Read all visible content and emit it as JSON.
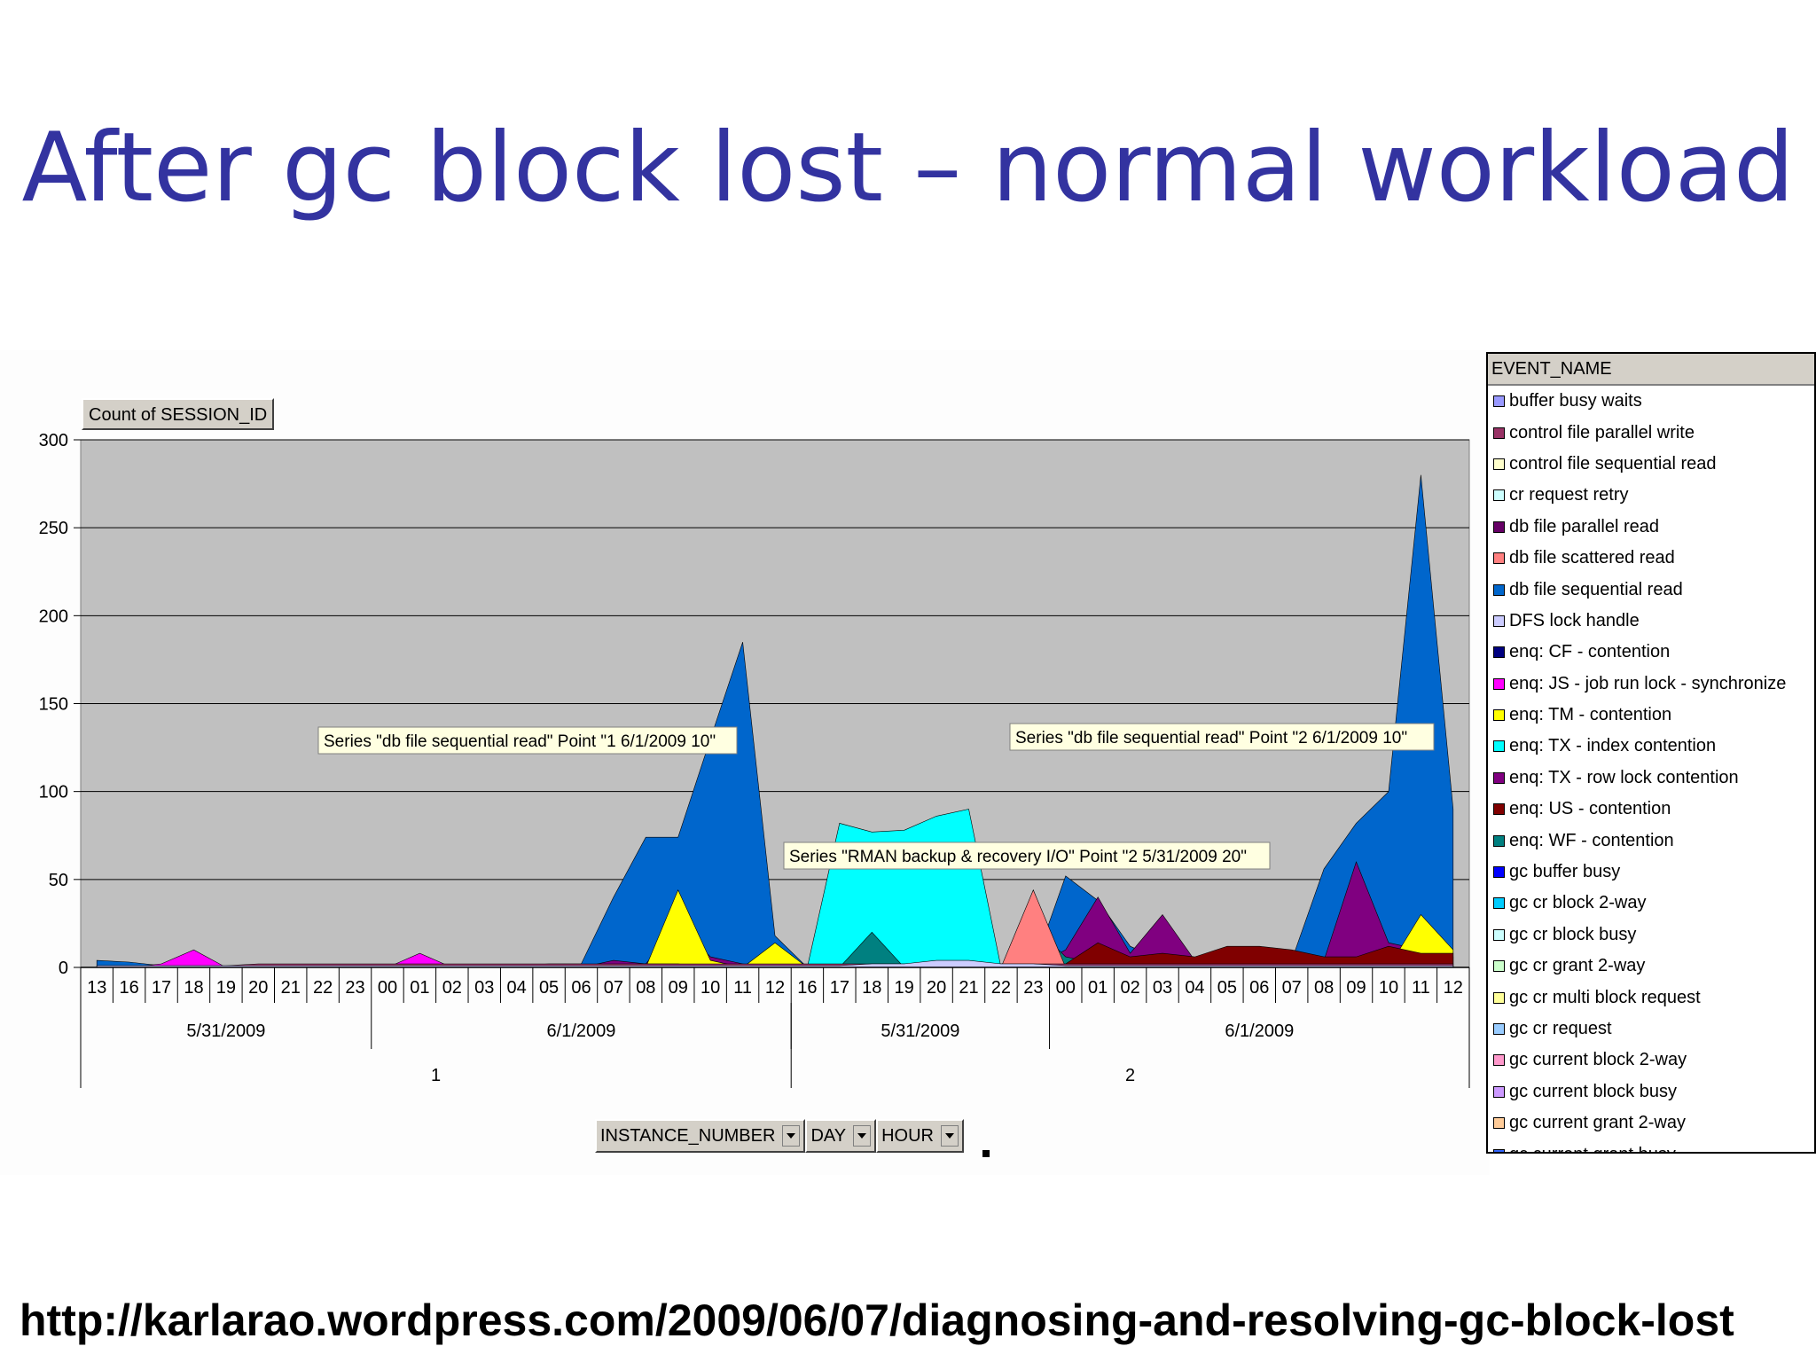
{
  "slide": {
    "title": "After gc block lost – normal workload",
    "url": "http://karlarao.wordpress.com/2009/06/07/diagnosing-and-resolving-gc-block-lost"
  },
  "pivot": {
    "data_field": "Count of SESSION_ID",
    "row_fields": [
      "INSTANCE_NUMBER",
      "DAY",
      "HOUR"
    ],
    "legend_title": "EVENT_NAME"
  },
  "colors": {
    "plot_bg": "#c0c0c0",
    "title": "#3333a0"
  },
  "chart_data": {
    "type": "area",
    "ylim": [
      0,
      300
    ],
    "yticks": [
      0,
      50,
      100,
      150,
      200,
      250,
      300
    ],
    "grid": true,
    "legend_placement": "right",
    "x_hours": [
      "13",
      "16",
      "17",
      "18",
      "19",
      "20",
      "21",
      "22",
      "23",
      "00",
      "01",
      "02",
      "03",
      "04",
      "05",
      "06",
      "07",
      "08",
      "09",
      "10",
      "11",
      "12",
      "16",
      "17",
      "18",
      "19",
      "20",
      "21",
      "22",
      "23",
      "00",
      "01",
      "02",
      "03",
      "04",
      "05",
      "06",
      "07",
      "08",
      "09",
      "10",
      "11",
      "12"
    ],
    "day_groups": [
      {
        "label": "5/31/2009",
        "count": 9
      },
      {
        "label": "6/1/2009",
        "count": 13
      },
      {
        "label": "5/31/2009",
        "count": 8
      },
      {
        "label": "6/1/2009",
        "count": 13
      }
    ],
    "instance_groups": [
      {
        "label": "1",
        "count": 22
      },
      {
        "label": "2",
        "count": 21
      }
    ],
    "series": [
      {
        "name": "buffer busy waits",
        "color": "#9999ff"
      },
      {
        "name": "control file parallel write",
        "color": "#993366"
      },
      {
        "name": "control file sequential read",
        "color": "#ffffcc"
      },
      {
        "name": "cr request retry",
        "color": "#ccffff"
      },
      {
        "name": "db file parallel read",
        "color": "#660066"
      },
      {
        "name": "db file scattered read",
        "color": "#ff8080"
      },
      {
        "name": "db file sequential read",
        "color": "#0066cc"
      },
      {
        "name": "DFS lock handle",
        "color": "#ccccff"
      },
      {
        "name": "enq: CF - contention",
        "color": "#000080"
      },
      {
        "name": "enq: JS - job run lock - synchronize",
        "color": "#ff00ff"
      },
      {
        "name": "enq: TM - contention",
        "color": "#ffff00"
      },
      {
        "name": "enq: TX - index contention",
        "color": "#00ffff"
      },
      {
        "name": "enq: TX - row lock contention",
        "color": "#800080"
      },
      {
        "name": "enq: US - contention",
        "color": "#800000"
      },
      {
        "name": "enq: WF - contention",
        "color": "#008080"
      },
      {
        "name": "gc buffer busy",
        "color": "#0000ff"
      },
      {
        "name": "gc cr block 2-way",
        "color": "#00ccff"
      },
      {
        "name": "gc cr block busy",
        "color": "#ccffff"
      },
      {
        "name": "gc cr grant 2-way",
        "color": "#ccffcc"
      },
      {
        "name": "gc cr multi block request",
        "color": "#ffff99"
      },
      {
        "name": "gc cr request",
        "color": "#99ccff"
      },
      {
        "name": "gc current block 2-way",
        "color": "#ff99cc"
      },
      {
        "name": "gc current block busy",
        "color": "#cc99ff"
      },
      {
        "name": "gc current grant 2-way",
        "color": "#ffcc99"
      },
      {
        "name": "gc current grant busy",
        "color": "#3366ff"
      }
    ],
    "areas": [
      {
        "name": "db file sequential read",
        "color": "#0066cc",
        "values": [
          4,
          3,
          1,
          0,
          0,
          1,
          1,
          1,
          1,
          1,
          1,
          1,
          1,
          1,
          2,
          2,
          40,
          74,
          74,
          130,
          185,
          18,
          0,
          0,
          0,
          0,
          0,
          0,
          0,
          0,
          52,
          38,
          12,
          4,
          4,
          4,
          4,
          4,
          56,
          82,
          100,
          280,
          90
        ]
      },
      {
        "name": "enq: TX - index contention",
        "color": "#00ffff",
        "values": [
          0,
          0,
          0,
          0,
          0,
          0,
          0,
          0,
          0,
          0,
          0,
          0,
          0,
          0,
          0,
          0,
          0,
          0,
          0,
          0,
          0,
          0,
          0,
          82,
          77,
          78,
          86,
          90,
          0,
          22,
          0,
          0,
          0,
          0,
          0,
          0,
          0,
          0,
          0,
          0,
          0,
          0,
          0
        ]
      },
      {
        "name": "enq: TX - row lock contention",
        "color": "#800080",
        "values": [
          0,
          0,
          0,
          0,
          0,
          0,
          0,
          0,
          0,
          0,
          0,
          0,
          0,
          0,
          0,
          0,
          4,
          2,
          25,
          6,
          2,
          0,
          0,
          0,
          0,
          0,
          0,
          0,
          0,
          0,
          10,
          40,
          8,
          30,
          4,
          4,
          6,
          4,
          4,
          60,
          14,
          10,
          6
        ]
      },
      {
        "name": "enq: TM - contention",
        "color": "#ffff00",
        "values": [
          0,
          0,
          0,
          0,
          0,
          0,
          0,
          0,
          0,
          0,
          0,
          0,
          0,
          0,
          0,
          0,
          0,
          0,
          44,
          4,
          0,
          14,
          0,
          0,
          0,
          0,
          0,
          0,
          0,
          0,
          0,
          0,
          0,
          0,
          0,
          0,
          0,
          0,
          0,
          0,
          0,
          30,
          10
        ]
      },
      {
        "name": "enq: WF - contention",
        "color": "#008080",
        "values": [
          0,
          0,
          0,
          0,
          0,
          0,
          0,
          0,
          0,
          0,
          0,
          0,
          0,
          0,
          0,
          0,
          0,
          0,
          0,
          0,
          0,
          0,
          0,
          0,
          20,
          0,
          0,
          0,
          0,
          24,
          6,
          2,
          0,
          0,
          0,
          0,
          0,
          0,
          0,
          0,
          0,
          0,
          0
        ]
      },
      {
        "name": "enq: JS - job run lock - synchronize",
        "color": "#ff00ff",
        "values": [
          0,
          0,
          2,
          10,
          0,
          0,
          0,
          0,
          0,
          0,
          8,
          0,
          0,
          0,
          0,
          0,
          0,
          0,
          0,
          0,
          0,
          0,
          0,
          0,
          0,
          0,
          0,
          0,
          0,
          0,
          0,
          0,
          0,
          0,
          0,
          0,
          0,
          0,
          0,
          0,
          0,
          0,
          0
        ]
      },
      {
        "name": "db file scattered read",
        "color": "#ff8080",
        "values": [
          0,
          0,
          0,
          0,
          0,
          0,
          0,
          0,
          0,
          0,
          0,
          0,
          0,
          0,
          0,
          0,
          0,
          0,
          0,
          0,
          0,
          0,
          0,
          0,
          0,
          0,
          0,
          0,
          0,
          44,
          0,
          0,
          0,
          0,
          0,
          0,
          0,
          0,
          0,
          0,
          0,
          0,
          0
        ]
      },
      {
        "name": "enq: US - contention",
        "color": "#800000",
        "values": [
          0,
          0,
          0,
          0,
          0,
          0,
          0,
          0,
          0,
          0,
          0,
          0,
          0,
          0,
          0,
          0,
          0,
          2,
          2,
          0,
          0,
          0,
          0,
          0,
          0,
          0,
          0,
          0,
          0,
          0,
          2,
          14,
          6,
          8,
          6,
          12,
          12,
          10,
          6,
          6,
          12,
          8,
          8
        ]
      },
      {
        "name": "control file parallel write",
        "color": "#993366",
        "values": [
          1,
          1,
          1,
          1,
          1,
          2,
          2,
          2,
          2,
          2,
          2,
          2,
          2,
          2,
          2,
          2,
          2,
          2,
          2,
          2,
          2,
          2,
          2,
          2,
          2,
          2,
          2,
          2,
          2,
          2,
          2,
          2,
          2,
          2,
          2,
          2,
          2,
          2,
          2,
          2,
          2,
          2,
          2
        ]
      },
      {
        "name": "DFS lock handle",
        "color": "#ccccff",
        "values": [
          1,
          1,
          1,
          1,
          1,
          1,
          1,
          1,
          1,
          1,
          1,
          1,
          1,
          1,
          1,
          1,
          1,
          1,
          1,
          1,
          1,
          1,
          1,
          1,
          2,
          2,
          4,
          4,
          2,
          2,
          1,
          1,
          1,
          1,
          1,
          1,
          1,
          1,
          1,
          1,
          1,
          1,
          1
        ]
      }
    ],
    "annotations": [
      "Series \"db file sequential read\" Point \"1 6/1/2009 10\"",
      "Series \"db file sequential read\" Point \"2 6/1/2009 10\"",
      "Series \"RMAN backup & recovery I/O\" Point \"2 5/31/2009 20\""
    ]
  }
}
